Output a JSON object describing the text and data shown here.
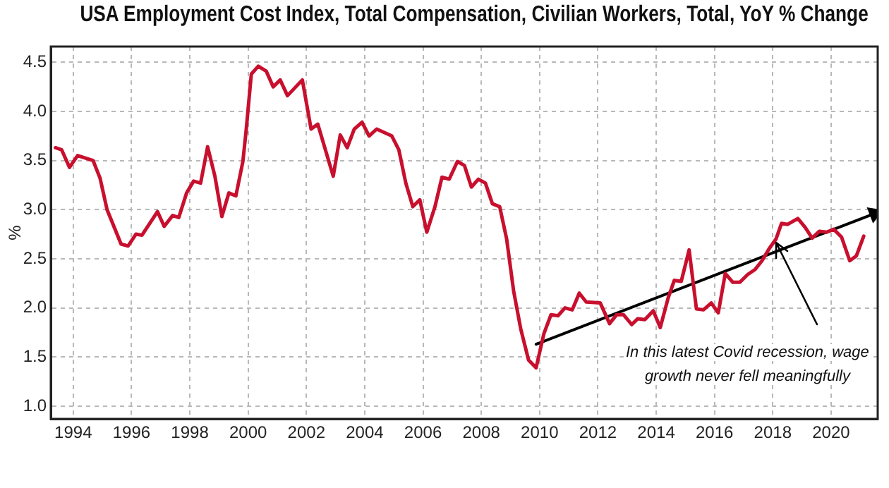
{
  "chart_data": {
    "type": "line",
    "title": "USA Employment Cost Index, Total Compensation, Civilian Workers, Total, YoY % Change",
    "ylabel": "%",
    "xlim": [
      1993.23,
      2021.6
    ],
    "xticks": [
      1994,
      1996,
      1998,
      2000,
      2002,
      2004,
      2006,
      2008,
      2010,
      2012,
      2014,
      2016,
      2018,
      2020
    ],
    "ylim": [
      0.87,
      4.66
    ],
    "yticks": [
      {
        "value": 1,
        "label": "1.0"
      },
      {
        "value": 1.5,
        "label": "1.5"
      },
      {
        "value": 2,
        "label": "2.0"
      },
      {
        "value": 2.5,
        "label": "2.5"
      },
      {
        "value": 3,
        "label": "3.0"
      },
      {
        "value": 3.5,
        "label": "3.5"
      },
      {
        "value": 4,
        "label": "4.0"
      },
      {
        "value": 4.5,
        "label": "4.5"
      }
    ],
    "grid": true,
    "line_style": "solid",
    "annotations": [
      {
        "text": "In this latest Covid recession, wage growth never fell meaningfully",
        "x": 2018.1,
        "y": 2.67
      }
    ],
    "series": [
      {
        "color": "#c8102e",
        "x": [
          1993.39,
          1993.6,
          1993.87,
          1994.15,
          1994.68,
          1994.92,
          1995.16,
          1995.64,
          1995.88,
          1996.15,
          1996.36,
          1996.89,
          1997.12,
          1997.41,
          1997.62,
          1997.89,
          1998.13,
          1998.37,
          1998.61,
          1998.86,
          1999.1,
          1999.34,
          1999.58,
          1999.82,
          1999.93,
          2000.11,
          2000.35,
          2000.62,
          2000.86,
          2001.1,
          2001.35,
          2001.86,
          2002.16,
          2002.39,
          2002.92,
          2003.16,
          2003.4,
          2003.64,
          2003.91,
          2004.15,
          2004.41,
          2004.93,
          2005.17,
          2005.41,
          2005.65,
          2005.89,
          2006.13,
          2006.41,
          2006.65,
          2006.9,
          2007.18,
          2007.42,
          2007.66,
          2007.9,
          2008.14,
          2008.38,
          2008.63,
          2008.87,
          2009.11,
          2009.35,
          2009.62,
          2009.88,
          2010.15,
          2010.39,
          2010.63,
          2010.87,
          2011.12,
          2011.36,
          2011.6,
          2012.08,
          2012.4,
          2012.64,
          2012.88,
          2013.16,
          2013.37,
          2013.61,
          2013.9,
          2014.14,
          2014.41,
          2014.62,
          2014.86,
          2015.13,
          2015.38,
          2015.62,
          2015.89,
          2016.13,
          2016.37,
          2016.63,
          2016.87,
          2017.14,
          2017.39,
          2017.63,
          2017.87,
          2018.11,
          2018.3,
          2018.51,
          2018.86,
          2019.11,
          2019.35,
          2019.6,
          2019.85,
          2020.09,
          2020.36,
          2020.64,
          2020.87,
          2021.12
        ],
        "values": [
          3.63,
          3.61,
          3.43,
          3.55,
          3.5,
          3.32,
          3.0,
          2.65,
          2.63,
          2.75,
          2.74,
          2.98,
          2.83,
          2.94,
          2.92,
          3.17,
          3.29,
          3.27,
          3.64,
          3.34,
          2.93,
          3.17,
          3.14,
          3.49,
          3.8,
          4.38,
          4.46,
          4.41,
          4.25,
          4.32,
          4.16,
          4.32,
          3.82,
          3.87,
          3.34,
          3.76,
          3.63,
          3.82,
          3.89,
          3.75,
          3.82,
          3.75,
          3.61,
          3.27,
          3.03,
          3.1,
          2.77,
          3.03,
          3.33,
          3.31,
          3.49,
          3.45,
          3.23,
          3.31,
          3.27,
          3.06,
          3.03,
          2.7,
          2.17,
          1.79,
          1.47,
          1.39,
          1.74,
          1.93,
          1.92,
          2.0,
          1.98,
          2.15,
          2.06,
          2.05,
          1.84,
          1.93,
          1.93,
          1.83,
          1.89,
          1.88,
          1.97,
          1.8,
          2.1,
          2.28,
          2.27,
          2.59,
          1.99,
          1.98,
          2.05,
          1.95,
          2.35,
          2.26,
          2.26,
          2.34,
          2.39,
          2.48,
          2.6,
          2.7,
          2.86,
          2.85,
          2.91,
          2.82,
          2.71,
          2.78,
          2.77,
          2.8,
          2.72,
          2.48,
          2.53,
          2.73
        ]
      },
      {
        "type": "line",
        "color": "#000000",
        "x": [
          2009.88,
          2021.49
        ],
        "values": [
          1.63,
          2.96
        ]
      }
    ]
  }
}
